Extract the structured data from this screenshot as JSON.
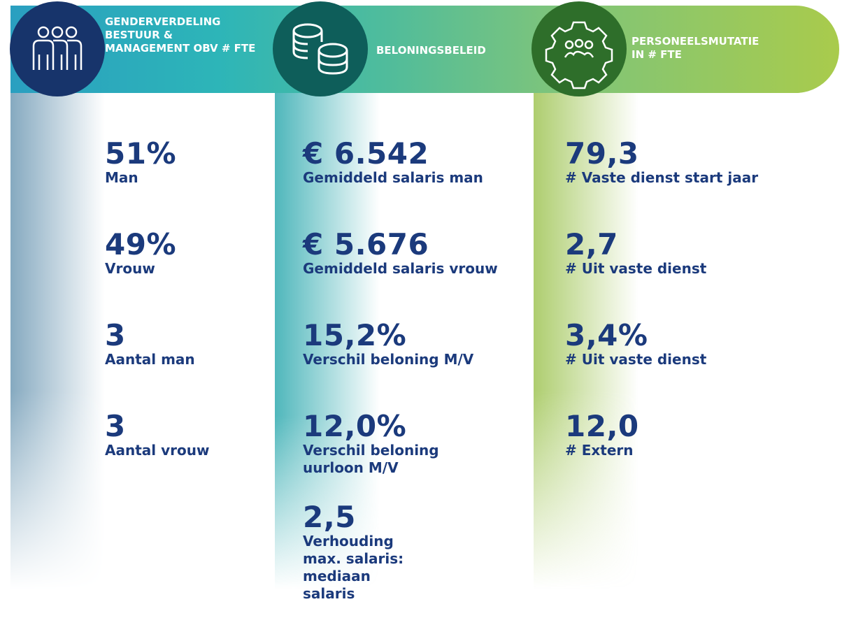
{
  "columns": [
    {
      "title": "GENDERVERDELING BESTUUR & MANAGEMENT OBV # FTE",
      "items": [
        {
          "value": "51%",
          "label": "Man"
        },
        {
          "value": "49%",
          "label": "Vrouw"
        },
        {
          "value": "3",
          "label": "Aantal man"
        },
        {
          "value": "3",
          "label": "Aantal vrouw"
        }
      ]
    },
    {
      "title": "BELONINGSBELEID",
      "items": [
        {
          "value": "€ 6.542",
          "label": "Gemiddeld salaris man"
        },
        {
          "value": "€ 5.676",
          "label": "Gemiddeld salaris vrouw"
        },
        {
          "value": "15,2%",
          "label": "Verschil beloning M/V"
        },
        {
          "value": "12,0%",
          "label": "Verschil beloning uurloon M/V"
        },
        {
          "value": "2,5",
          "label": "Verhouding max. salaris: mediaan salaris"
        }
      ]
    },
    {
      "title": "PERSONEELSMUTATIE IN # FTE",
      "items": [
        {
          "value": "79,3",
          "label": "# Vaste dienst start jaar"
        },
        {
          "value": "2,7",
          "label": "# Uit vaste dienst"
        },
        {
          "value": "3,4%",
          "label": "# Uit vaste dienst"
        },
        {
          "value": "12,0",
          "label": "# Extern"
        }
      ]
    }
  ]
}
